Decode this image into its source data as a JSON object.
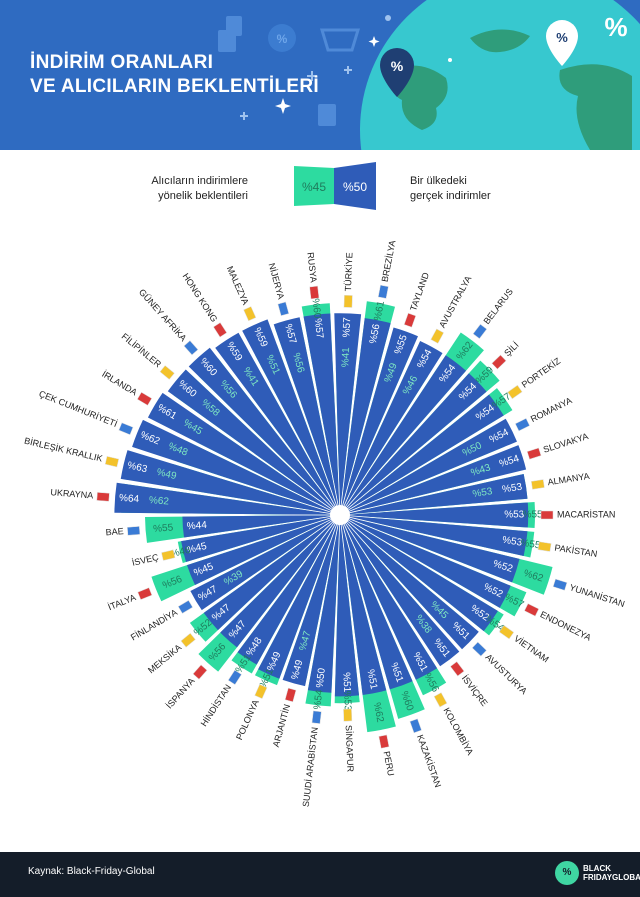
{
  "header": {
    "title_line1": "İNDİRİM ORANLARI",
    "title_line2": "VE ALICILARIN BEKLENTİLERİ",
    "pin_symbol": "%",
    "bg_color": "#2f6bc1"
  },
  "legend": {
    "left_line1": "Alıcıların indirimlere",
    "left_line2": "yönelik beklentileri",
    "right_line1": "Bir ülkedeki",
    "right_line2": "gerçek indirimler",
    "expected_swatch": "%45",
    "actual_swatch": "%50"
  },
  "colors": {
    "actual": "#2f5cb8",
    "expected": "#2ddba0",
    "label": "#222222"
  },
  "chart_data": {
    "type": "radial-bar",
    "value_prefix": "%",
    "series": [
      {
        "name": "Bir ülkedeki gerçek indirimler"
      },
      {
        "name": "Alıcıların indirimlere yönelik beklentileri"
      }
    ],
    "countries": [
      {
        "name": "MACARİSTAN",
        "actual": 53,
        "expected": 55
      },
      {
        "name": "PAKİSTAN",
        "actual": 53,
        "expected": 55
      },
      {
        "name": "YUNANİSTAN",
        "actual": 52,
        "expected": 62
      },
      {
        "name": "ENDONEZYA",
        "actual": 52,
        "expected": 57
      },
      {
        "name": "VİETNAM",
        "actual": 52,
        "expected": 54
      },
      {
        "name": "AVUSTURYA",
        "actual": 51,
        "expected": 45
      },
      {
        "name": "İSVİÇRE",
        "actual": 51,
        "expected": 38
      },
      {
        "name": "KOLOMBİYA",
        "actual": 51,
        "expected": 56
      },
      {
        "name": "KAZAKİSTAN",
        "actual": 51,
        "expected": 60
      },
      {
        "name": "PERU",
        "actual": 51,
        "expected": 62
      },
      {
        "name": "SİNGAPUR",
        "actual": 51,
        "expected": 53
      },
      {
        "name": "SUUDİ ARABİSTAN",
        "actual": 50,
        "expected": 54
      },
      {
        "name": "ARJANTİN",
        "actual": 49,
        "expected": 47
      },
      {
        "name": "POLONYA",
        "actual": 49,
        "expected": 51
      },
      {
        "name": "HİNDİSTAN",
        "actual": 48,
        "expected": 51
      },
      {
        "name": "İSPANYA",
        "actual": 47,
        "expected": 56
      },
      {
        "name": "MEKSİKA",
        "actual": 47,
        "expected": 52
      },
      {
        "name": "FİNLANDİYA",
        "actual": 47,
        "expected": 39
      },
      {
        "name": "İTALYA",
        "actual": 45,
        "expected": 56
      },
      {
        "name": "İSVEÇ",
        "actual": 45,
        "expected": 46
      },
      {
        "name": "BAE",
        "actual": 44,
        "expected": 55
      },
      {
        "name": "UKRAYNA",
        "actual": 64,
        "expected": 62
      },
      {
        "name": "BİRLEŞİK KRALLIK",
        "actual": 63,
        "expected": 49
      },
      {
        "name": "ÇEK CUMHURİYETİ",
        "actual": 62,
        "expected": 48
      },
      {
        "name": "İRLANDA",
        "actual": 61,
        "expected": 45
      },
      {
        "name": "FİLİPİNLER",
        "actual": 60,
        "expected": 58
      },
      {
        "name": "GÜNEY AFRİKA",
        "actual": 60,
        "expected": 56
      },
      {
        "name": "HONG KONG",
        "actual": 59,
        "expected": 41
      },
      {
        "name": "MALEZYA",
        "actual": 59,
        "expected": 51
      },
      {
        "name": "NİJERYA",
        "actual": 57,
        "expected": 56
      },
      {
        "name": "RUSYA",
        "actual": 57,
        "expected": 60
      },
      {
        "name": "TÜRKİYE",
        "actual": 57,
        "expected": 41
      },
      {
        "name": "BREZİLYA",
        "actual": 56,
        "expected": 61
      },
      {
        "name": "TAYLAND",
        "actual": 55,
        "expected": 49
      },
      {
        "name": "AVUSTRALYA",
        "actual": 54,
        "expected": 46
      },
      {
        "name": "BELARUS",
        "actual": 54,
        "expected": 62
      },
      {
        "name": "ŞİLİ",
        "actual": 54,
        "expected": 59
      },
      {
        "name": "PORTEKİZ",
        "actual": 54,
        "expected": 57
      },
      {
        "name": "ROMANYA",
        "actual": 54,
        "expected": 50
      },
      {
        "name": "SLOVAKYA",
        "actual": 54,
        "expected": 43
      },
      {
        "name": "ALMANYA",
        "actual": 53,
        "expected": 53
      }
    ]
  },
  "footer": {
    "source": "Kaynak: Black-Friday-Global",
    "logo_symbol": "%",
    "logo_line1": "BLACK",
    "logo_line2": "FRIDAYGLOBAL"
  }
}
